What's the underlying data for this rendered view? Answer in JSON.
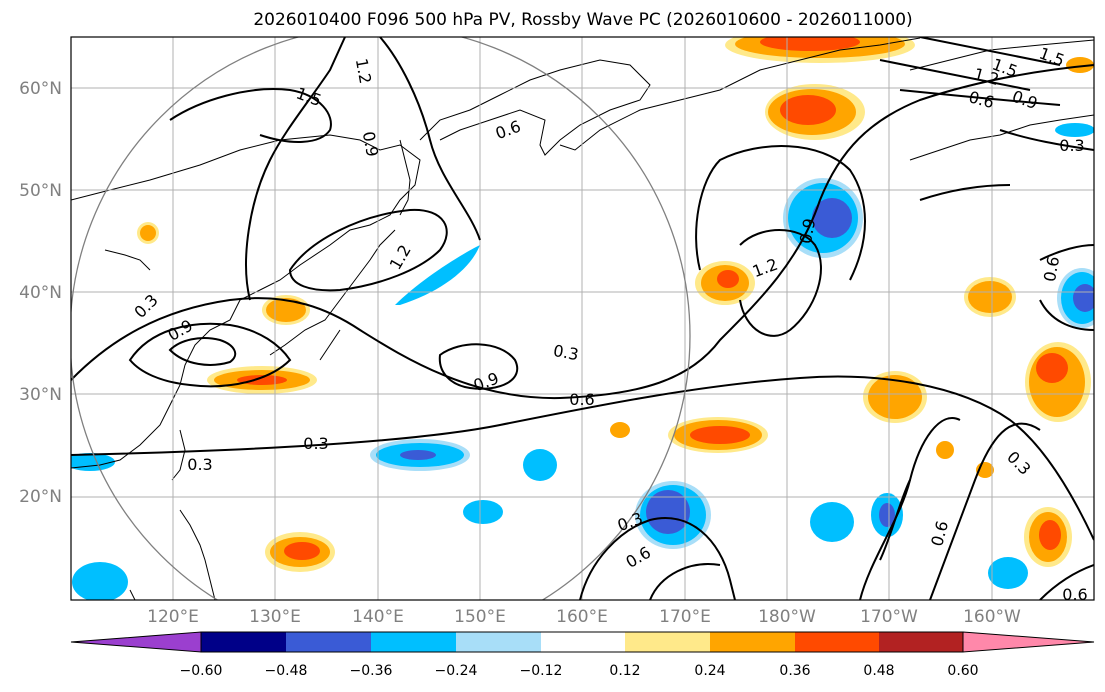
{
  "title": "2026010400 F096 500 hPa PV, Rossby Wave PC (2026010600 - 2026011000)",
  "map": {
    "lon_range": [
      110,
      210
    ],
    "lat_range": [
      10,
      65
    ],
    "lat_ticks": [
      "20°N",
      "30°N",
      "40°N",
      "50°N",
      "60°N"
    ],
    "lat_values": [
      20,
      30,
      40,
      50,
      60
    ],
    "lon_ticks": [
      "120°E",
      "130°E",
      "140°E",
      "150°E",
      "160°E",
      "170°E",
      "180°W",
      "170°W",
      "160°W"
    ],
    "lon_values": [
      120,
      130,
      140,
      150,
      160,
      170,
      180,
      190,
      200
    ],
    "grid": true,
    "circle_center": [
      140,
      35
    ]
  },
  "contour_labels": [
    "1.2",
    "1.5",
    "0.9",
    "0.6",
    "0.3",
    "1.2",
    "0.9",
    "0.6",
    "0.3",
    "0.9",
    "0.3",
    "0.6",
    "0.3",
    "1.2",
    "0.9",
    "0.6",
    "1.5",
    "1.5",
    "1.2",
    "0.6",
    "0.9",
    "0.3",
    "0.6",
    "0.3",
    "0.6",
    "0.3",
    "0.3"
  ],
  "colorbar": {
    "ticks": [
      "−0.60",
      "−0.48",
      "−0.36",
      "−0.24",
      "−0.12",
      "0.12",
      "0.24",
      "0.36",
      "0.48",
      "0.60"
    ],
    "colors": [
      "#9b3fcf",
      "#000088",
      "#3a5bd6",
      "#00bfff",
      "#a8def8",
      "#ffffff",
      "#ffe98a",
      "#ffa500",
      "#ff4a00",
      "#b22222",
      "#ff88aa"
    ]
  },
  "colors": {
    "neg_light": "#00bfff",
    "neg_dark": "#3a5bd6",
    "pos_light": "#ffe98a",
    "pos_mid": "#ffa500",
    "pos_dark": "#ff4a00",
    "grid": "#b0b0b0"
  }
}
